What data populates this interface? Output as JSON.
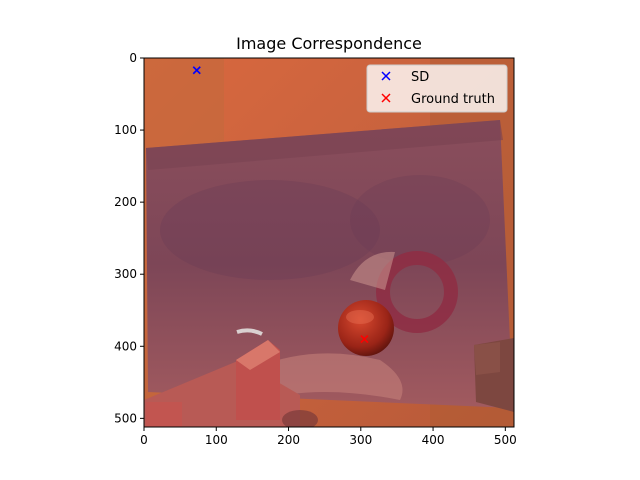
{
  "chart_data": {
    "type": "scatter",
    "title": "Image Correspondence",
    "xlabel": "",
    "ylabel": "",
    "xlim": [
      0,
      512
    ],
    "ylim": [
      512,
      0
    ],
    "y_inverted": true,
    "xticks": [
      0,
      100,
      200,
      300,
      400,
      500
    ],
    "yticks": [
      0,
      100,
      200,
      300,
      400,
      500
    ],
    "grid": false,
    "legend_position": "top-right",
    "background": "image",
    "series": [
      {
        "name": "SD",
        "marker": "x",
        "color": "#0000ff",
        "points": [
          [
            73,
            17
          ]
        ]
      },
      {
        "name": "Ground truth",
        "marker": "x",
        "color": "#ff0000",
        "points": [
          [
            305,
            390
          ]
        ]
      }
    ]
  }
}
